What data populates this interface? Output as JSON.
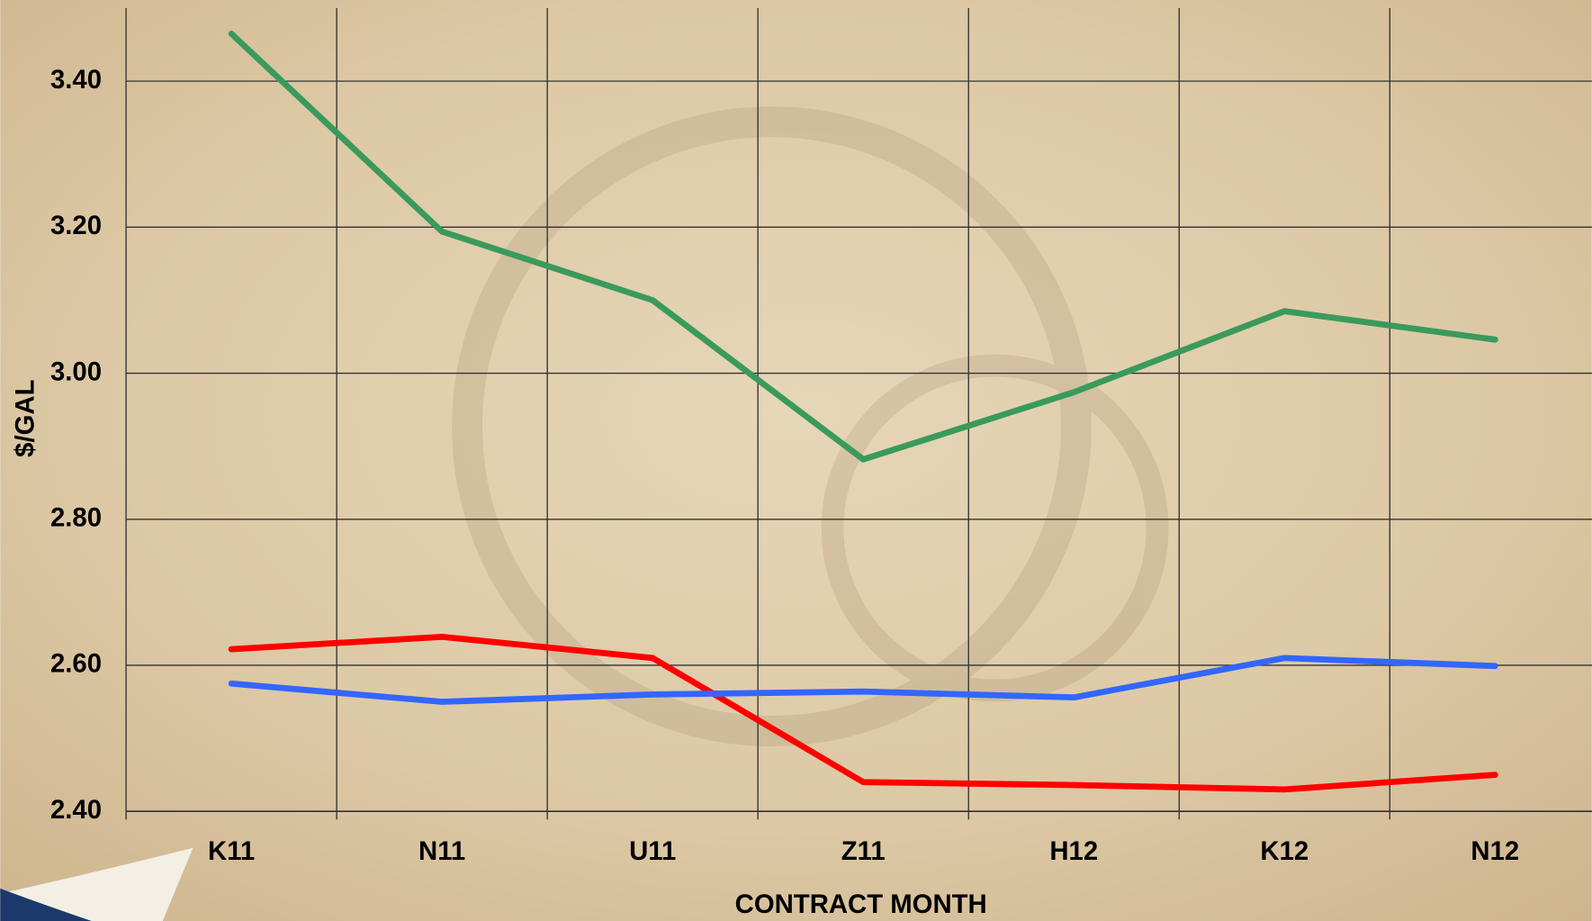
{
  "chart_data": {
    "type": "line",
    "x_label": "CONTRACT MONTH",
    "y_label": "$/GAL",
    "categories": [
      "K11",
      "N11",
      "U11",
      "Z11",
      "H12",
      "K12",
      "N12"
    ],
    "series": [
      {
        "color": "#3a9a5c",
        "values": [
          3.465,
          3.194,
          3.1,
          2.882,
          2.974,
          3.085,
          3.046
        ]
      },
      {
        "color": "#ff0000",
        "values": [
          2.622,
          2.639,
          2.61,
          2.44,
          2.436,
          2.43,
          2.45
        ]
      },
      {
        "color": "#3366ff",
        "values": [
          2.575,
          2.55,
          2.56,
          2.564,
          2.556,
          2.61,
          2.599
        ]
      }
    ],
    "ylim": [
      2.4,
      3.5
    ],
    "yticks": [
      {
        "value": 2.4,
        "label": "2.40"
      },
      {
        "value": 2.6,
        "label": "2.60"
      },
      {
        "value": 2.8,
        "label": "2.80"
      },
      {
        "value": 3.0,
        "label": "3.00"
      },
      {
        "value": 3.2,
        "label": "3.20"
      },
      {
        "value": 3.4,
        "label": "3.40"
      }
    ],
    "grid": true
  }
}
